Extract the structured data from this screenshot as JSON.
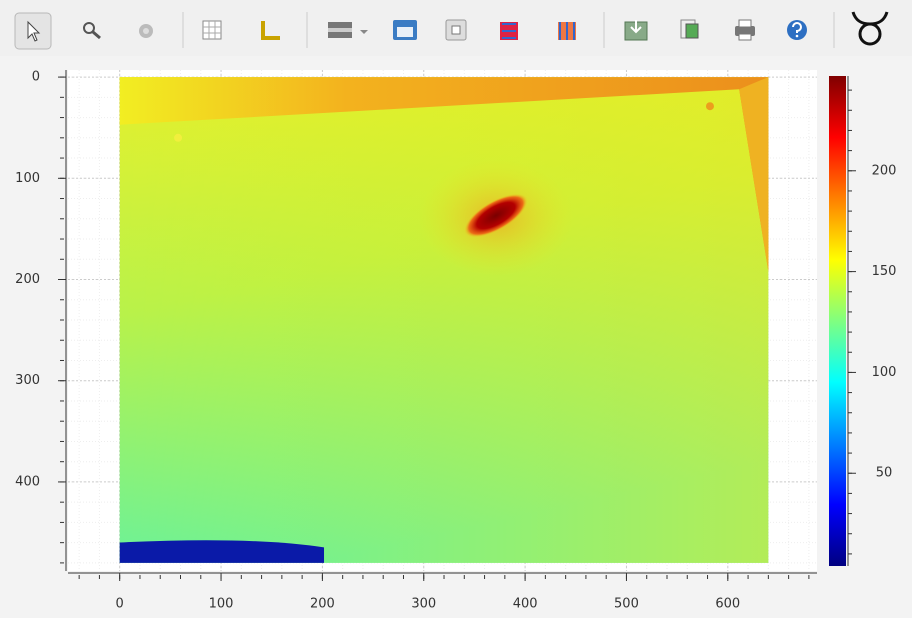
{
  "chart_data": {
    "type": "image",
    "image_size": [
      640,
      480
    ],
    "xlim": [
      -51,
      688
    ],
    "ylim": [
      488,
      -7
    ],
    "xticks": [
      0,
      100,
      200,
      300,
      400,
      500,
      600
    ],
    "yticks": [
      0,
      100,
      200,
      300,
      400
    ],
    "grid": true,
    "colorbar": {
      "lim": [
        4,
        247
      ],
      "ticks": [
        50,
        100,
        150,
        200
      ],
      "colormap": "jet"
    }
  }
}
